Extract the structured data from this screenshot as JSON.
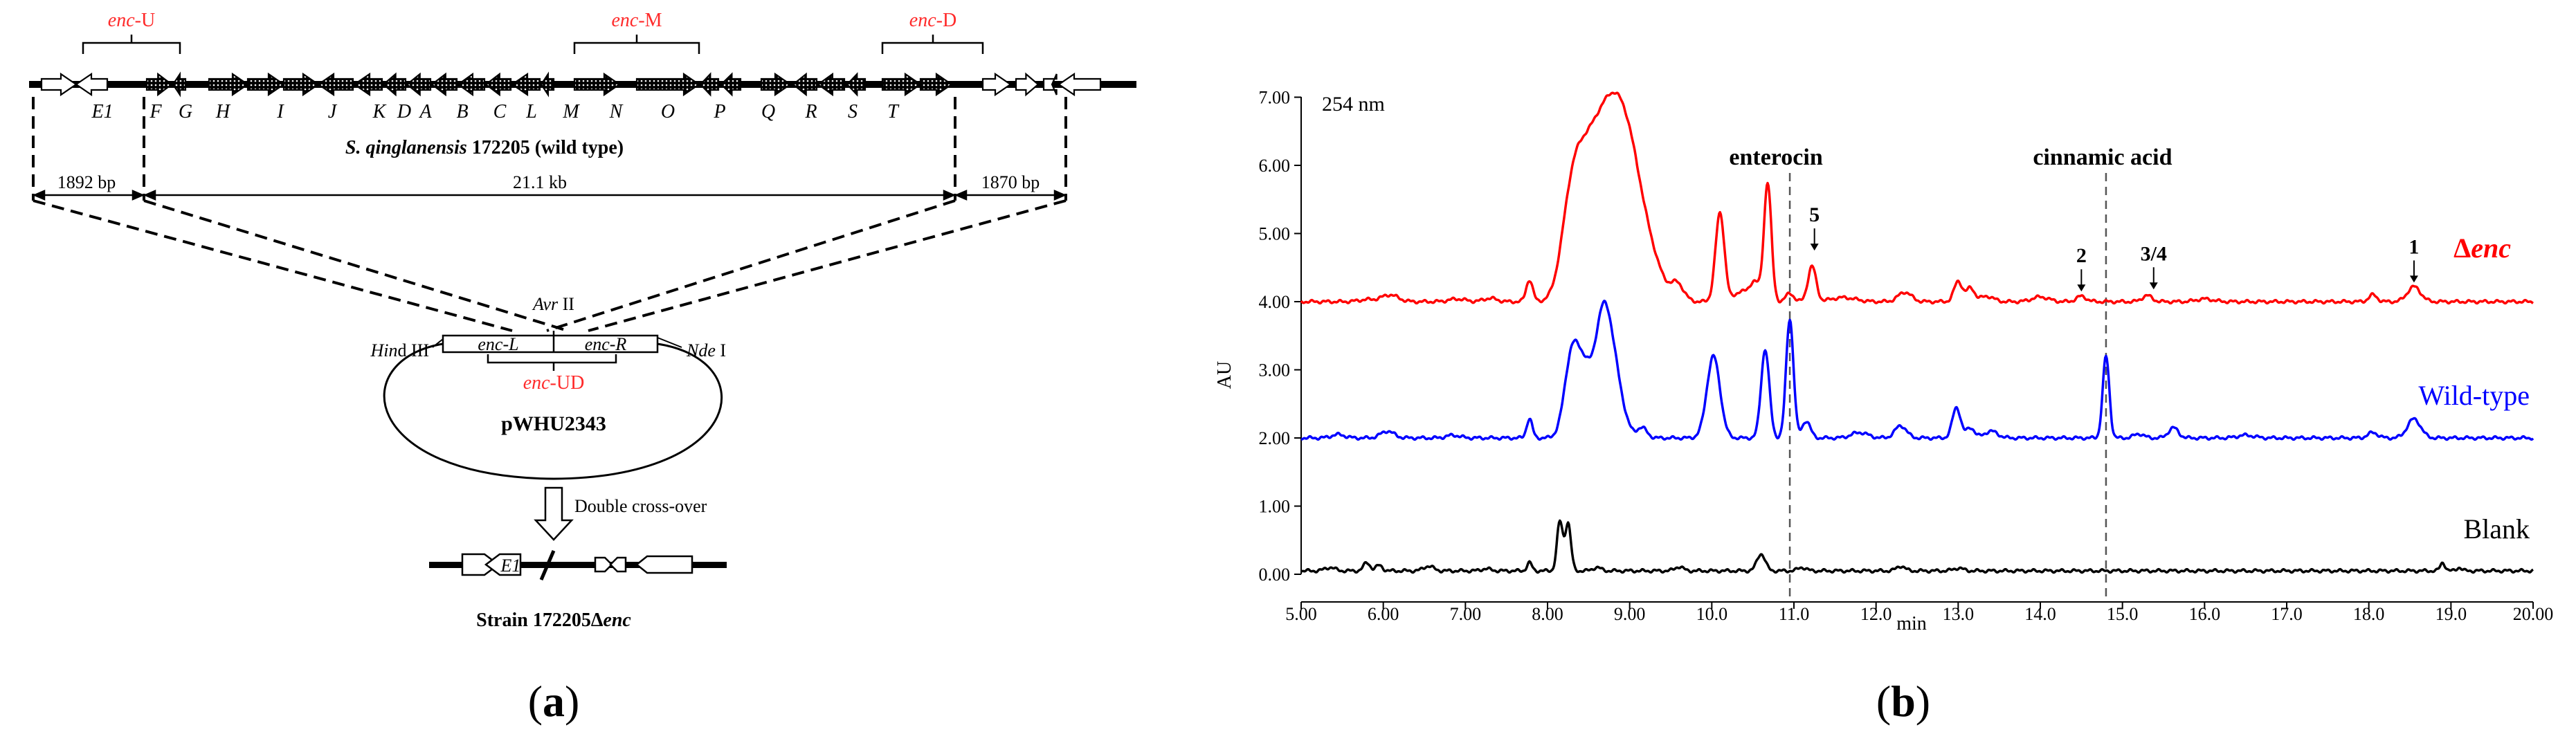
{
  "panel_a": {
    "caption_open": "(",
    "caption_letter": "a",
    "caption_close": ")",
    "region_labels": {
      "up_prefix": "enc",
      "up_suffix": "-U",
      "mid_prefix": "enc",
      "mid_suffix": "-M",
      "down_prefix": "enc",
      "down_suffix": "-D"
    },
    "gene_letters": [
      "E1",
      "F",
      "G",
      "H",
      "I",
      "J",
      "K",
      "D",
      "A",
      "B",
      "C",
      "L",
      "M",
      "N",
      "O",
      "P",
      "Q",
      "R",
      "S",
      "T"
    ],
    "strain_species": "S. qinglanensis",
    "strain_rest": " 172205 (wild type)",
    "left_flank_bp": "1892 bp",
    "cluster_length": "21.1 kb",
    "right_flank_bp": "1870 bp",
    "avr_label": "Avr",
    "avr_roman": " II",
    "hind_label_1": "Hin",
    "hind_label_2": "d",
    "hind_label_3": " III",
    "nde_label": "Nde",
    "nde_roman": " I",
    "insert_left": "enc-L",
    "insert_right": "enc-R",
    "insert_joined_prefix": "enc",
    "insert_joined_suffix": "-UD",
    "plasmid_name": "pWHU2343",
    "process_label": "Double cross-over",
    "mutant_gene_label": "E1",
    "mutant_strain_prefix": "Strain 172205Δ",
    "mutant_strain_suffix": "enc",
    "colors": {
      "red_label": "#ff2a2a",
      "black": "#000000"
    }
  },
  "panel_b": {
    "caption_open": "(",
    "caption_letter": "b",
    "caption_close": ")",
    "chart_data": {
      "type": "line",
      "wavelength_label": "254 nm",
      "xlabel": "min",
      "ylabel": "AU",
      "xlim": [
        5.0,
        20.0
      ],
      "ylim": [
        -0.4,
        7.0
      ],
      "x_ticks": [
        "5.00",
        "6.00",
        "7.00",
        "8.00",
        "9.00",
        "10.0",
        "11.0",
        "12.0",
        "13.0",
        "14.0",
        "15.0",
        "16.0",
        "17.0",
        "18.0",
        "19.0",
        "20.00"
      ],
      "x_tick_values": [
        5,
        6,
        7,
        8,
        9,
        10,
        11,
        12,
        13,
        14,
        15,
        16,
        17,
        18,
        19,
        20
      ],
      "y_ticks": [
        "0.00",
        "1.00",
        "2.00",
        "3.00",
        "4.00",
        "5.00",
        "6.00",
        "7.00"
      ],
      "y_tick_values": [
        0,
        1,
        2,
        3,
        4,
        5,
        6,
        7
      ],
      "reference_lines": [
        {
          "label": "enterocin",
          "x": 10.95
        },
        {
          "label": "cinnamic acid",
          "x": 14.8
        }
      ],
      "peak_annotations": [
        {
          "label": "5",
          "x": 11.25,
          "y": 4.75
        },
        {
          "label": "2",
          "x": 14.5,
          "y": 4.15
        },
        {
          "label": "3/4",
          "x": 15.38,
          "y": 4.18
        },
        {
          "label": "1",
          "x": 18.55,
          "y": 4.28
        }
      ],
      "series": [
        {
          "name": "Δenc",
          "name_prefix": "Δ",
          "name_suffix": "enc",
          "color": "#ff0000",
          "baseline": 4.0,
          "peaks": [
            {
              "x": 5.8,
              "h": 0.03,
              "w": 0.1
            },
            {
              "x": 6.08,
              "h": 0.1,
              "w": 0.1
            },
            {
              "x": 6.9,
              "h": 0.04,
              "w": 0.1
            },
            {
              "x": 7.3,
              "h": 0.05,
              "w": 0.08
            },
            {
              "x": 7.78,
              "h": 0.32,
              "w": 0.04
            },
            {
              "x": 8.28,
              "h": 1.05,
              "w": 0.12
            },
            {
              "x": 8.45,
              "h": 1.3,
              "w": 0.15
            },
            {
              "x": 8.7,
              "h": 1.85,
              "w": 0.18
            },
            {
              "x": 8.98,
              "h": 2.1,
              "w": 0.2
            },
            {
              "x": 9.32,
              "h": 0.2,
              "w": 0.12
            },
            {
              "x": 9.58,
              "h": 0.25,
              "w": 0.08
            },
            {
              "x": 10.1,
              "h": 1.3,
              "w": 0.055
            },
            {
              "x": 10.35,
              "h": 0.15,
              "w": 0.07
            },
            {
              "x": 10.52,
              "h": 0.3,
              "w": 0.06
            },
            {
              "x": 10.68,
              "h": 1.75,
              "w": 0.045
            },
            {
              "x": 10.95,
              "h": 0.12,
              "w": 0.05
            },
            {
              "x": 11.22,
              "h": 0.52,
              "w": 0.05
            },
            {
              "x": 11.6,
              "h": 0.06,
              "w": 0.15
            },
            {
              "x": 12.35,
              "h": 0.14,
              "w": 0.08
            },
            {
              "x": 13.0,
              "h": 0.3,
              "w": 0.05
            },
            {
              "x": 13.15,
              "h": 0.2,
              "w": 0.05
            },
            {
              "x": 13.35,
              "h": 0.08,
              "w": 0.08
            },
            {
              "x": 14.0,
              "h": 0.07,
              "w": 0.1
            },
            {
              "x": 14.5,
              "h": 0.08,
              "w": 0.06
            },
            {
              "x": 15.3,
              "h": 0.09,
              "w": 0.06
            },
            {
              "x": 16.0,
              "h": 0.04,
              "w": 0.1
            },
            {
              "x": 18.05,
              "h": 0.1,
              "w": 0.05
            },
            {
              "x": 18.55,
              "h": 0.22,
              "w": 0.08
            }
          ]
        },
        {
          "name": "Wild-type",
          "color": "#0000ff",
          "baseline": 2.0,
          "peaks": [
            {
              "x": 5.45,
              "h": 0.05,
              "w": 0.08
            },
            {
              "x": 6.05,
              "h": 0.1,
              "w": 0.08
            },
            {
              "x": 6.85,
              "h": 0.04,
              "w": 0.08
            },
            {
              "x": 7.78,
              "h": 0.28,
              "w": 0.035
            },
            {
              "x": 8.3,
              "h": 1.25,
              "w": 0.09
            },
            {
              "x": 8.45,
              "h": 0.7,
              "w": 0.08
            },
            {
              "x": 8.68,
              "h": 1.85,
              "w": 0.11
            },
            {
              "x": 8.85,
              "h": 0.5,
              "w": 0.1
            },
            {
              "x": 9.15,
              "h": 0.15,
              "w": 0.06
            },
            {
              "x": 10.02,
              "h": 1.2,
              "w": 0.08
            },
            {
              "x": 10.65,
              "h": 1.3,
              "w": 0.05
            },
            {
              "x": 10.95,
              "h": 1.75,
              "w": 0.045
            },
            {
              "x": 11.15,
              "h": 0.25,
              "w": 0.05
            },
            {
              "x": 11.8,
              "h": 0.08,
              "w": 0.1
            },
            {
              "x": 12.3,
              "h": 0.18,
              "w": 0.07
            },
            {
              "x": 12.98,
              "h": 0.45,
              "w": 0.05
            },
            {
              "x": 13.15,
              "h": 0.15,
              "w": 0.05
            },
            {
              "x": 13.4,
              "h": 0.1,
              "w": 0.08
            },
            {
              "x": 14.8,
              "h": 1.2,
              "w": 0.04
            },
            {
              "x": 15.2,
              "h": 0.06,
              "w": 0.06
            },
            {
              "x": 15.62,
              "h": 0.15,
              "w": 0.06
            },
            {
              "x": 16.5,
              "h": 0.04,
              "w": 0.1
            },
            {
              "x": 18.05,
              "h": 0.08,
              "w": 0.06
            },
            {
              "x": 18.55,
              "h": 0.28,
              "w": 0.08
            }
          ]
        },
        {
          "name": "Blank",
          "color": "#000000",
          "baseline": 0.05,
          "peaks": [
            {
              "x": 5.35,
              "h": 0.05,
              "w": 0.06
            },
            {
              "x": 5.8,
              "h": 0.12,
              "w": 0.04
            },
            {
              "x": 5.95,
              "h": 0.08,
              "w": 0.04
            },
            {
              "x": 6.55,
              "h": 0.07,
              "w": 0.06
            },
            {
              "x": 7.25,
              "h": 0.03,
              "w": 0.06
            },
            {
              "x": 7.78,
              "h": 0.12,
              "w": 0.03
            },
            {
              "x": 8.15,
              "h": 0.72,
              "w": 0.035
            },
            {
              "x": 8.25,
              "h": 0.7,
              "w": 0.035
            },
            {
              "x": 8.6,
              "h": 0.05,
              "w": 0.05
            },
            {
              "x": 9.6,
              "h": 0.06,
              "w": 0.05
            },
            {
              "x": 10.6,
              "h": 0.25,
              "w": 0.05
            },
            {
              "x": 11.1,
              "h": 0.05,
              "w": 0.05
            },
            {
              "x": 12.3,
              "h": 0.07,
              "w": 0.05
            },
            {
              "x": 13.0,
              "h": 0.04,
              "w": 0.06
            },
            {
              "x": 18.9,
              "h": 0.12,
              "w": 0.03
            },
            {
              "x": 19.1,
              "h": 0.05,
              "w": 0.03
            }
          ]
        }
      ]
    }
  }
}
